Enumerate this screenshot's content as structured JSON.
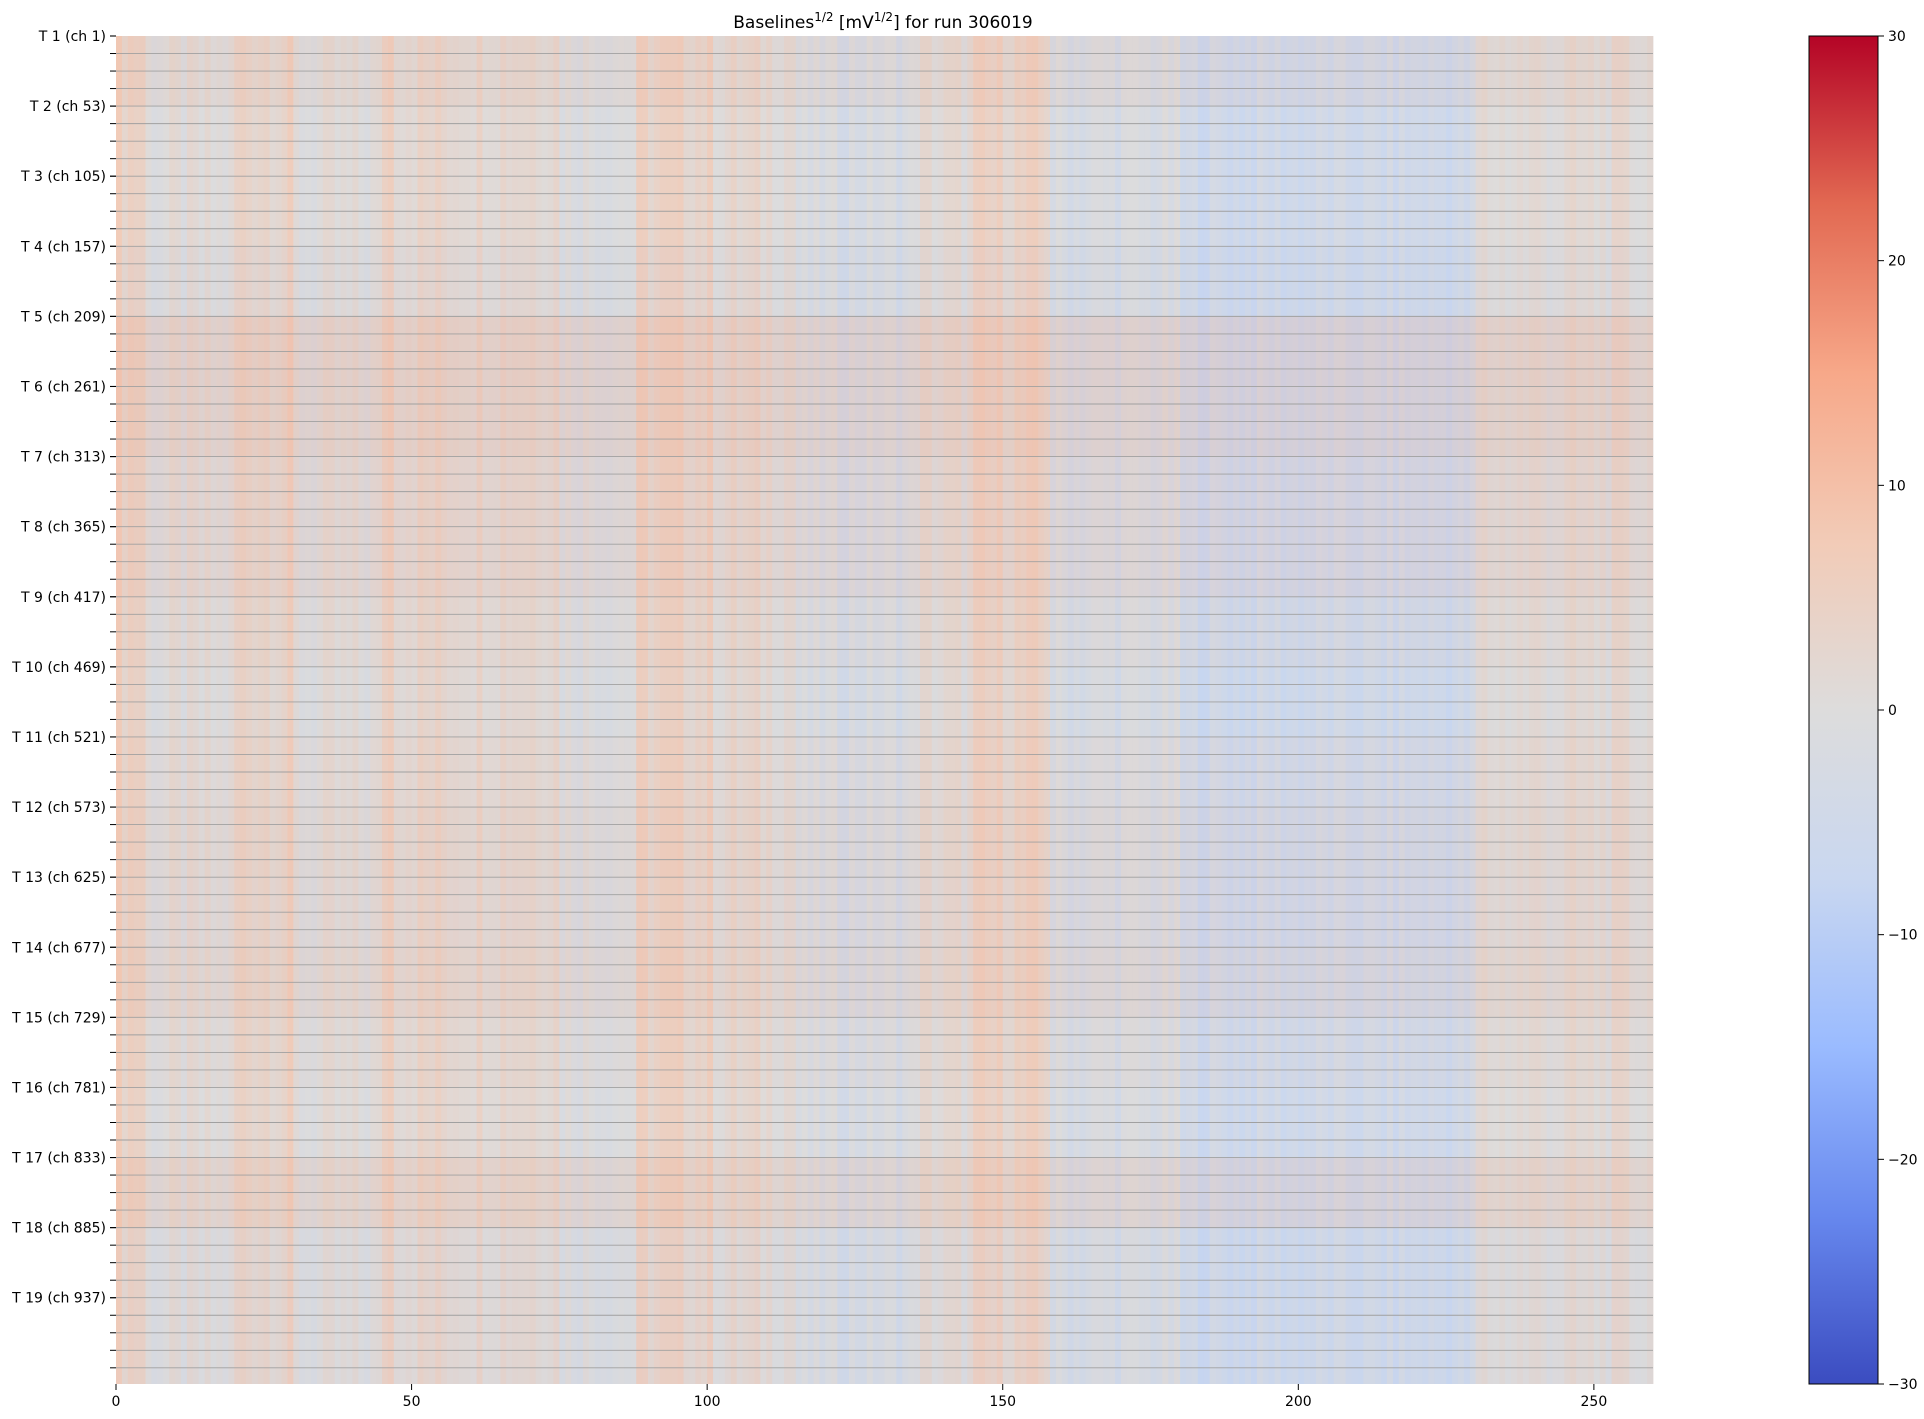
{
  "chart_data": {
    "type": "heatmap",
    "title": {
      "text": "Baselines",
      "sup1": "1/2",
      "mid": " [mV",
      "sup2": "1/2",
      "tail": "] for run 306019"
    },
    "xlabel": "",
    "ylabel": "",
    "xlim": [
      0,
      260
    ],
    "n_rows": 1000,
    "row_band_size": 52,
    "x_ticks": [
      0,
      50,
      100,
      150,
      200,
      250
    ],
    "y_tick_labels": [
      "T 1 (ch 1)",
      "T 2 (ch 53)",
      "T 3 (ch 105)",
      "T 4 (ch 157)",
      "T 5 (ch 209)",
      "T 6 (ch 261)",
      "T 7 (ch 313)",
      "T 8 (ch 365)",
      "T 9 (ch 417)",
      "T 10 (ch 469)",
      "T 11 (ch 521)",
      "T 12 (ch 573)",
      "T 13 (ch 625)",
      "T 14 (ch 677)",
      "T 15 (ch 729)",
      "T 16 (ch 781)",
      "T 17 (ch 833)",
      "T 18 (ch 885)",
      "T 19 (ch 937)"
    ],
    "y_tick_channels": [
      1,
      53,
      105,
      157,
      209,
      261,
      313,
      365,
      417,
      469,
      521,
      573,
      625,
      677,
      729,
      781,
      833,
      885,
      937
    ],
    "colorbar": {
      "cmap": "coolwarm",
      "vmin": -30,
      "vmax": 30,
      "ticks": [
        -30,
        -20,
        -10,
        0,
        10,
        20,
        30
      ],
      "tick_labels": [
        "−30",
        "−20",
        "−10",
        "0",
        "10",
        "20",
        "30"
      ],
      "colors": [
        "#3b4cc0",
        "#6788ee",
        "#9abbff",
        "#c9d7f0",
        "#dddcdc",
        "#f2cbb7",
        "#f7a889",
        "#e26952",
        "#b40426"
      ]
    },
    "column_profile": [
      {
        "x": [
          0,
          5
        ],
        "value": 5
      },
      {
        "x": [
          5,
          20
        ],
        "value": 0
      },
      {
        "x": [
          20,
          30
        ],
        "value": 4
      },
      {
        "x": [
          30,
          45
        ],
        "value": 0
      },
      {
        "x": [
          45,
          47
        ],
        "value": 6
      },
      {
        "x": [
          47,
          75
        ],
        "value": 3
      },
      {
        "x": [
          75,
          88
        ],
        "value": 0
      },
      {
        "x": [
          88,
          101
        ],
        "value": 4
      },
      {
        "x": [
          101,
          115
        ],
        "value": 2
      },
      {
        "x": [
          115,
          135
        ],
        "value": -2
      },
      {
        "x": [
          135,
          145
        ],
        "value": 1
      },
      {
        "x": [
          145,
          158
        ],
        "value": 4
      },
      {
        "x": [
          158,
          180
        ],
        "value": -2
      },
      {
        "x": [
          180,
          230
        ],
        "value": -5
      },
      {
        "x": [
          230,
          260
        ],
        "value": 1
      }
    ],
    "row_features": [
      {
        "rows": [
          0,
          40
        ],
        "delta": 1
      },
      {
        "rows": [
          250,
          262
        ],
        "delta": 3
      },
      {
        "rows": [
          330,
          380
        ],
        "delta": 1
      },
      {
        "rows": [
          620,
          720
        ],
        "delta": 1
      },
      {
        "rows": [
          850,
          865
        ],
        "delta": 2
      }
    ]
  }
}
